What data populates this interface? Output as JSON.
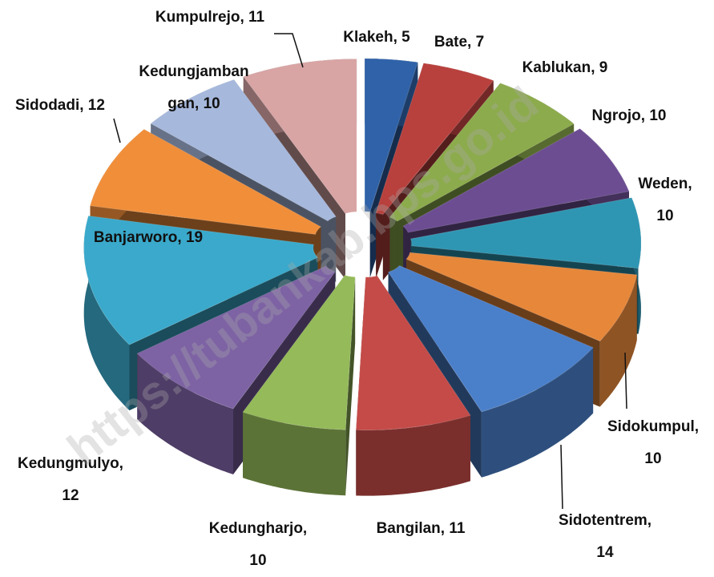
{
  "chart_data": {
    "type": "pie3d",
    "values": [
      5,
      7,
      9,
      10,
      10,
      10,
      14,
      11,
      10,
      12,
      19,
      12,
      10,
      11
    ],
    "value_labels": [
      "Klakeh, 5",
      "Bate, 7",
      "Kablukan, 9",
      "Ngrojo, 10",
      "Weden,\n10",
      "Sidokumpul,\n10",
      "Sidotentrem,\n14",
      "Bangilan, 11",
      "Kedungharjo,\n10",
      "Kedungmulyo,\n12",
      "Banjarworo, 19",
      "Sidodadi, 12",
      "Kedungjamban\ngan, 10",
      "Kumpulrejo, 11"
    ],
    "colors": [
      "#2f62a8",
      "#b8403d",
      "#8cab4c",
      "#6c4d92",
      "#2e96b3",
      "#e6873a",
      "#4a7fca",
      "#c44b48",
      "#94ba59",
      "#7d62a4",
      "#3aa9cb",
      "#f08e3a",
      "#a6b8dc",
      "#d8a4a4"
    ],
    "watermark": "https://tubankab.bps.go.id"
  }
}
